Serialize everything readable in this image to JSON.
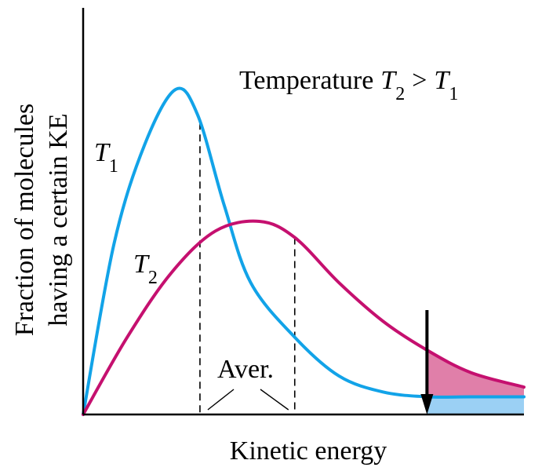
{
  "chart_data": {
    "type": "line",
    "title": "",
    "xlabel": "Kinetic energy",
    "ylabel_line1": "Fraction of molecules",
    "ylabel_line2": "having a certain KE",
    "annotation": {
      "text": "Temperature",
      "T2_symbol": "T",
      "T2_sub": "2",
      "relation": ">",
      "T1_symbol": "T",
      "T1_sub": "1"
    },
    "average_label": "Aver.",
    "xlim": [
      0,
      10
    ],
    "ylim": [
      0,
      10
    ],
    "threshold_x": 7.8,
    "series": [
      {
        "name_symbol": "T",
        "name_sub": "1",
        "color": "#12a3e8",
        "fill_color": "#9bd0f4",
        "average_x": 2.65,
        "points": [
          [
            0,
            0
          ],
          [
            0.7,
            5.3
          ],
          [
            1.4,
            8.4
          ],
          [
            2.1,
            10.1
          ],
          [
            2.6,
            9.3
          ],
          [
            3.2,
            6.5
          ],
          [
            3.8,
            4.1
          ],
          [
            4.8,
            2.4
          ],
          [
            5.8,
            1.2
          ],
          [
            6.8,
            0.7
          ],
          [
            7.8,
            0.55
          ],
          [
            8.8,
            0.55
          ],
          [
            10,
            0.55
          ]
        ]
      },
      {
        "name_symbol": "T",
        "name_sub": "2",
        "color": "#c5106f",
        "fill_color": "#e07fa9",
        "average_x": 4.8,
        "points": [
          [
            0,
            0
          ],
          [
            1.0,
            2.4
          ],
          [
            2.0,
            4.4
          ],
          [
            3.0,
            5.7
          ],
          [
            4.0,
            6.0
          ],
          [
            4.8,
            5.5
          ],
          [
            5.8,
            4.1
          ],
          [
            6.8,
            2.9
          ],
          [
            7.8,
            2.0
          ],
          [
            8.8,
            1.3
          ],
          [
            10,
            0.85
          ]
        ]
      }
    ]
  }
}
